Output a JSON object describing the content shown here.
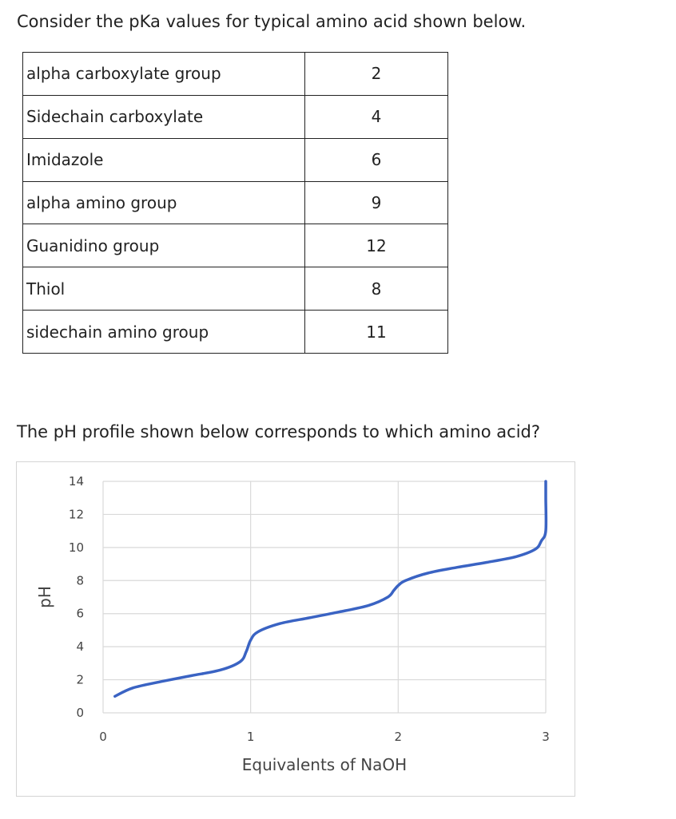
{
  "intro_text": "Consider the pKa values for typical amino acid shown below.",
  "pka_table": {
    "rows": [
      {
        "group": "alpha carboxylate group",
        "value": "2"
      },
      {
        "group": "Sidechain carboxylate",
        "value": "4"
      },
      {
        "group": "Imidazole",
        "value": "6"
      },
      {
        "group": "alpha amino group",
        "value": "9"
      },
      {
        "group": "Guanidino group",
        "value": "12"
      },
      {
        "group": "Thiol",
        "value": "8"
      },
      {
        "group": "sidechain amino group",
        "value": "11"
      }
    ]
  },
  "question_text": "The pH profile shown below corresponds to which amino acid?",
  "chart_data": {
    "type": "line",
    "xlabel": "Equivalents of NaOH",
    "ylabel": "pH",
    "xlim": [
      0,
      3
    ],
    "ylim": [
      0,
      14
    ],
    "xticks": [
      "0",
      "1",
      "2",
      "3"
    ],
    "yticks": [
      "0",
      "2",
      "4",
      "6",
      "8",
      "10",
      "12",
      "14"
    ],
    "grid": true,
    "line_color": "#3a63c3",
    "grid_color": "#d9d9d9",
    "series": [
      {
        "x": [
          0.08,
          0.2,
          0.4,
          0.6,
          0.8,
          0.93,
          0.97,
          1.0,
          1.05,
          1.2,
          1.4,
          1.6,
          1.8,
          1.93,
          1.97,
          2.0,
          2.05,
          2.2,
          2.4,
          2.6,
          2.8,
          2.93,
          2.97,
          3.0,
          3.0,
          3.0
        ],
        "y": [
          1.0,
          1.5,
          1.9,
          2.25,
          2.6,
          3.1,
          3.7,
          4.4,
          4.9,
          5.4,
          5.75,
          6.1,
          6.5,
          7.0,
          7.4,
          7.7,
          8.0,
          8.45,
          8.8,
          9.1,
          9.45,
          9.9,
          10.4,
          11.0,
          13.0,
          14.0
        ]
      }
    ]
  }
}
